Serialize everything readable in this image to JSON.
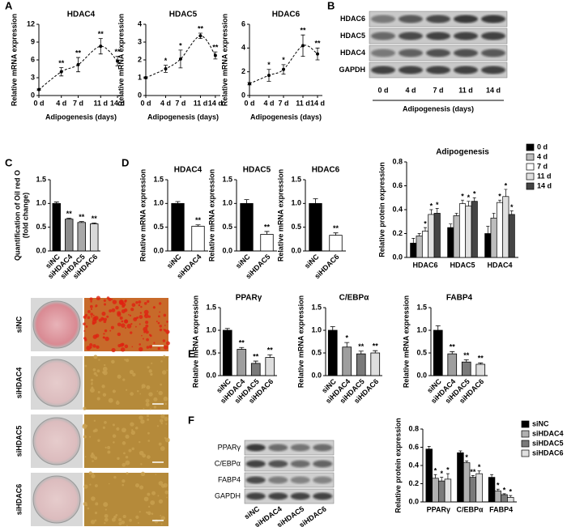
{
  "panel_labels": [
    "A",
    "B",
    "C",
    "D",
    "E",
    "F"
  ],
  "blot_b": {
    "rows": [
      "HDAC6",
      "HDAC5",
      "HDAC4",
      "GAPDH"
    ],
    "lanes": [
      "0 d",
      "4 d",
      "7 d",
      "11 d",
      "14 d"
    ],
    "xlabel": "Adipogenesis (days)"
  },
  "blot_f": {
    "rows": [
      "PPARγ",
      "C/EBPα",
      "FABP4",
      "GAPDH"
    ],
    "lanes": [
      "siNC",
      "siHDAC4",
      "siHDAC5",
      "siHDAC6"
    ]
  },
  "oil_red": {
    "rows": [
      "siNC",
      "siHDAC4",
      "siHDAC5",
      "siHDAC6"
    ]
  },
  "chart_data": [
    {
      "type": "line",
      "title": "HDAC4",
      "ylabel": "Relative mRNA expression",
      "xlabel": "Adipogenesis (days)",
      "x": [
        0,
        4,
        7,
        11,
        14
      ],
      "values": [
        1,
        4,
        5.2,
        8.3,
        5.8
      ],
      "errors": [
        0.1,
        0.7,
        1.2,
        1.3,
        0.8
      ],
      "sig": [
        null,
        "**",
        "**",
        "**",
        "**"
      ],
      "xlim": [
        0,
        15
      ],
      "xticks": [
        {
          "value": 0,
          "label": "0 d"
        },
        {
          "value": 4,
          "label": "4 d"
        },
        {
          "value": 7,
          "label": "7 d"
        },
        {
          "value": 11,
          "label": "11 d"
        },
        {
          "value": 14,
          "label": "14 d"
        }
      ],
      "ylim": [
        0,
        12
      ],
      "yticks": [
        0,
        3,
        6,
        9,
        12
      ],
      "color": "#000000"
    },
    {
      "type": "line",
      "title": "HDAC5",
      "ylabel": "Relative mRNA expression",
      "xlabel": "Adipogenesis (days)",
      "x": [
        0,
        4,
        7,
        11,
        14
      ],
      "values": [
        1,
        1.5,
        2.05,
        3.35,
        2.25
      ],
      "errors": [
        0.05,
        0.2,
        0.5,
        0.15,
        0.2
      ],
      "sig": [
        null,
        "*",
        "*",
        "**",
        "**"
      ],
      "xlim": [
        0,
        15
      ],
      "xticks": [
        {
          "value": 0,
          "label": "0 d"
        },
        {
          "value": 4,
          "label": "4 d"
        },
        {
          "value": 7,
          "label": "7 d"
        },
        {
          "value": 11,
          "label": "11 d"
        },
        {
          "value": 14,
          "label": "14 d"
        }
      ],
      "ylim": [
        0,
        4
      ],
      "yticks": [
        0,
        1,
        2,
        3,
        4
      ],
      "color": "#000000"
    },
    {
      "type": "line",
      "title": "HDAC6",
      "ylabel": "Relative mRNA expression",
      "xlabel": "Adipogenesis (days)",
      "x": [
        0,
        4,
        7,
        11,
        14
      ],
      "values": [
        1,
        1.7,
        2.2,
        4.2,
        3.5
      ],
      "errors": [
        0.1,
        0.5,
        0.4,
        0.9,
        0.5
      ],
      "sig": [
        null,
        "*",
        "*",
        "**",
        "**"
      ],
      "xlim": [
        0,
        15
      ],
      "xticks": [
        {
          "value": 0,
          "label": "0 d"
        },
        {
          "value": 4,
          "label": "4 d"
        },
        {
          "value": 7,
          "label": "7 d"
        },
        {
          "value": 11,
          "label": "11 d"
        },
        {
          "value": 14,
          "label": "14 d"
        }
      ],
      "ylim": [
        0,
        6
      ],
      "yticks": [
        0,
        2,
        4,
        6
      ],
      "color": "#000000"
    },
    {
      "type": "bar",
      "ylabel": [
        "Quantification of Oil red O",
        "(fold change)"
      ],
      "categories": [
        "siNC",
        "siHDAC4",
        "siHDAC5",
        "siHDAC6"
      ],
      "values": [
        1.0,
        0.67,
        0.6,
        0.57
      ],
      "errors": [
        0.03,
        0.02,
        0.02,
        0.02
      ],
      "sig": [
        null,
        "**",
        "**",
        "**"
      ],
      "colors": [
        "#000000",
        "#8c8c8c",
        "#a8a8a8",
        "#d9d9d9"
      ],
      "ylim": [
        0,
        1.5
      ],
      "yticks": [
        {
          "value": 0,
          "label": "0.0"
        },
        {
          "value": 0.5,
          "label": "0.5"
        },
        {
          "value": 1,
          "label": "1.0"
        },
        {
          "value": 1.5,
          "label": "1.5"
        }
      ]
    },
    {
      "type": "bar",
      "title": "HDAC4",
      "ylabel": "Relative mRNA expression",
      "categories": [
        "siNC",
        "siHDAC4"
      ],
      "values": [
        1.0,
        0.52
      ],
      "errors": [
        0.04,
        0.03
      ],
      "sig": [
        null,
        "**"
      ],
      "colors": [
        "#000000",
        "#ffffff"
      ],
      "ylim": [
        0,
        1.5
      ],
      "yticks": [
        {
          "value": 0,
          "label": "0.0"
        },
        {
          "value": 0.5,
          "label": "0.5"
        },
        {
          "value": 1,
          "label": "1.0"
        },
        {
          "value": 1.5,
          "label": "1.5"
        }
      ]
    },
    {
      "type": "bar",
      "title": "HDAC5",
      "ylabel": "Relative mRNA expression",
      "categories": [
        "siNC",
        "siHDAC5"
      ],
      "values": [
        1.0,
        0.35
      ],
      "errors": [
        0.08,
        0.06
      ],
      "sig": [
        null,
        "**"
      ],
      "colors": [
        "#000000",
        "#ffffff"
      ],
      "ylim": [
        0,
        1.5
      ],
      "yticks": [
        {
          "value": 0,
          "label": "0.0"
        },
        {
          "value": 0.5,
          "label": "0.5"
        },
        {
          "value": 1,
          "label": "1.0"
        },
        {
          "value": 1.5,
          "label": "1.5"
        }
      ]
    },
    {
      "type": "bar",
      "title": "HDAC6",
      "ylabel": "Relative mRNA expression",
      "categories": [
        "siNC",
        "siHDAC6"
      ],
      "values": [
        1.0,
        0.33
      ],
      "errors": [
        0.1,
        0.05
      ],
      "sig": [
        null,
        "**"
      ],
      "colors": [
        "#000000",
        "#ffffff"
      ],
      "ylim": [
        0,
        1.5
      ],
      "yticks": [
        {
          "value": 0,
          "label": "0.0"
        },
        {
          "value": 0.5,
          "label": "0.5"
        },
        {
          "value": 1,
          "label": "1.0"
        },
        {
          "value": 1.5,
          "label": "1.5"
        }
      ]
    },
    {
      "type": "grouped-bar",
      "title": "Adipogenesis",
      "ylabel": "Relative protein expression",
      "categories": [
        "HDAC6",
        "HDAC5",
        "HDAC4"
      ],
      "series": [
        {
          "name": "0 d",
          "color": "#000000",
          "values": [
            0.12,
            0.25,
            0.2
          ],
          "errors": [
            0.04,
            0.03,
            0.06
          ],
          "sig": [
            null,
            null,
            null
          ]
        },
        {
          "name": "4 d",
          "color": "#bdbdbd",
          "values": [
            0.18,
            0.35,
            0.33
          ],
          "errors": [
            0.02,
            0.02,
            0.04
          ],
          "sig": [
            null,
            null,
            null
          ]
        },
        {
          "name": "7 d",
          "color": "#ffffff",
          "values": [
            0.22,
            0.45,
            0.46
          ],
          "errors": [
            0.03,
            0.03,
            0.02
          ],
          "sig": [
            "*",
            "*",
            "*"
          ]
        },
        {
          "name": "11 d",
          "color": "#e0e0e0",
          "values": [
            0.36,
            0.43,
            0.51
          ],
          "errors": [
            0.04,
            0.04,
            0.06
          ],
          "sig": [
            "*",
            "*",
            "*"
          ]
        },
        {
          "name": "14 d",
          "color": "#444444",
          "values": [
            0.37,
            0.47,
            0.36
          ],
          "errors": [
            0.04,
            0.03,
            0.03
          ],
          "sig": [
            "*",
            "*",
            "*"
          ]
        }
      ],
      "ylim": [
        0,
        0.8
      ],
      "yticks": [
        {
          "value": 0,
          "label": "0.0"
        },
        {
          "value": 0.2,
          "label": "0.2"
        },
        {
          "value": 0.4,
          "label": "0.4"
        },
        {
          "value": 0.6,
          "label": "0.6"
        },
        {
          "value": 0.8,
          "label": "0.8"
        }
      ]
    },
    {
      "type": "bar",
      "title": "PPARγ",
      "ylabel": "Relative mRNA expression",
      "categories": [
        "siNC",
        "siHDAC4",
        "siHDAC5",
        "siHDAC6"
      ],
      "values": [
        1.0,
        0.58,
        0.27,
        0.4
      ],
      "errors": [
        0.04,
        0.04,
        0.05,
        0.06
      ],
      "sig": [
        null,
        "**",
        "**",
        "**"
      ],
      "colors": [
        "#000000",
        "#9e9e9e",
        "#7a7a7a",
        "#dedede"
      ],
      "ylim": [
        0,
        1.5
      ],
      "yticks": [
        {
          "value": 0,
          "label": "0.0"
        },
        {
          "value": 0.5,
          "label": "0.5"
        },
        {
          "value": 1,
          "label": "1.0"
        },
        {
          "value": 1.5,
          "label": "1.5"
        }
      ]
    },
    {
      "type": "bar",
      "title": "C/EBPα",
      "ylabel": "Relative mRNA expression",
      "categories": [
        "siNC",
        "siHDAC4",
        "siHDAC5",
        "siHDAC6"
      ],
      "values": [
        1.0,
        0.63,
        0.48,
        0.5
      ],
      "errors": [
        0.08,
        0.1,
        0.06,
        0.05
      ],
      "sig": [
        null,
        "*",
        "**",
        "**"
      ],
      "colors": [
        "#000000",
        "#9e9e9e",
        "#7a7a7a",
        "#dedede"
      ],
      "ylim": [
        0,
        1.5
      ],
      "yticks": [
        {
          "value": 0,
          "label": "0.0"
        },
        {
          "value": 0.5,
          "label": "0.5"
        },
        {
          "value": 1,
          "label": "1.0"
        },
        {
          "value": 1.5,
          "label": "1.5"
        }
      ]
    },
    {
      "type": "bar",
      "title": "FABP4",
      "ylabel": "Relative mRNA expression",
      "categories": [
        "siNC",
        "siHDAC4",
        "siHDAC5",
        "siHDAC6"
      ],
      "values": [
        1.0,
        0.48,
        0.3,
        0.25
      ],
      "errors": [
        0.1,
        0.05,
        0.05,
        0.03
      ],
      "sig": [
        null,
        "**",
        "**",
        "**"
      ],
      "colors": [
        "#000000",
        "#9e9e9e",
        "#7a7a7a",
        "#dedede"
      ],
      "ylim": [
        0,
        1.5
      ],
      "yticks": [
        {
          "value": 0,
          "label": "0.0"
        },
        {
          "value": 0.5,
          "label": "0.5"
        },
        {
          "value": 1,
          "label": "1.0"
        },
        {
          "value": 1.5,
          "label": "1.5"
        }
      ]
    },
    {
      "type": "grouped-bar",
      "ylabel": "Relative protein expression",
      "categories": [
        "PPARγ",
        "C/EBPα",
        "FABP4"
      ],
      "series": [
        {
          "name": "siNC",
          "color": "#000000",
          "values": [
            0.58,
            0.54,
            0.27
          ],
          "errors": [
            0.03,
            0.02,
            0.03
          ],
          "sig": [
            null,
            null,
            null
          ]
        },
        {
          "name": "siHDAC4",
          "color": "#b0b0b0",
          "values": [
            0.26,
            0.43,
            0.12
          ],
          "errors": [
            0.04,
            0.02,
            0.02
          ],
          "sig": [
            "*",
            "*",
            "*"
          ]
        },
        {
          "name": "siHDAC5",
          "color": "#7a7a7a",
          "values": [
            0.23,
            0.27,
            0.08
          ],
          "errors": [
            0.04,
            0.02,
            0.01
          ],
          "sig": [
            "*",
            "**",
            "*"
          ]
        },
        {
          "name": "siHDAC6",
          "color": "#e0e0e0",
          "values": [
            0.25,
            0.31,
            0.05
          ],
          "errors": [
            0.06,
            0.03,
            0.02
          ],
          "sig": [
            "*",
            "*",
            "*"
          ]
        }
      ],
      "ylim": [
        0,
        0.8
      ],
      "yticks": [
        {
          "value": 0,
          "label": "0.0"
        },
        {
          "value": 0.2,
          "label": "0.2"
        },
        {
          "value": 0.4,
          "label": "0.4"
        },
        {
          "value": 0.6,
          "label": "0.6"
        },
        {
          "value": 0.8,
          "label": "0.8"
        }
      ]
    }
  ]
}
